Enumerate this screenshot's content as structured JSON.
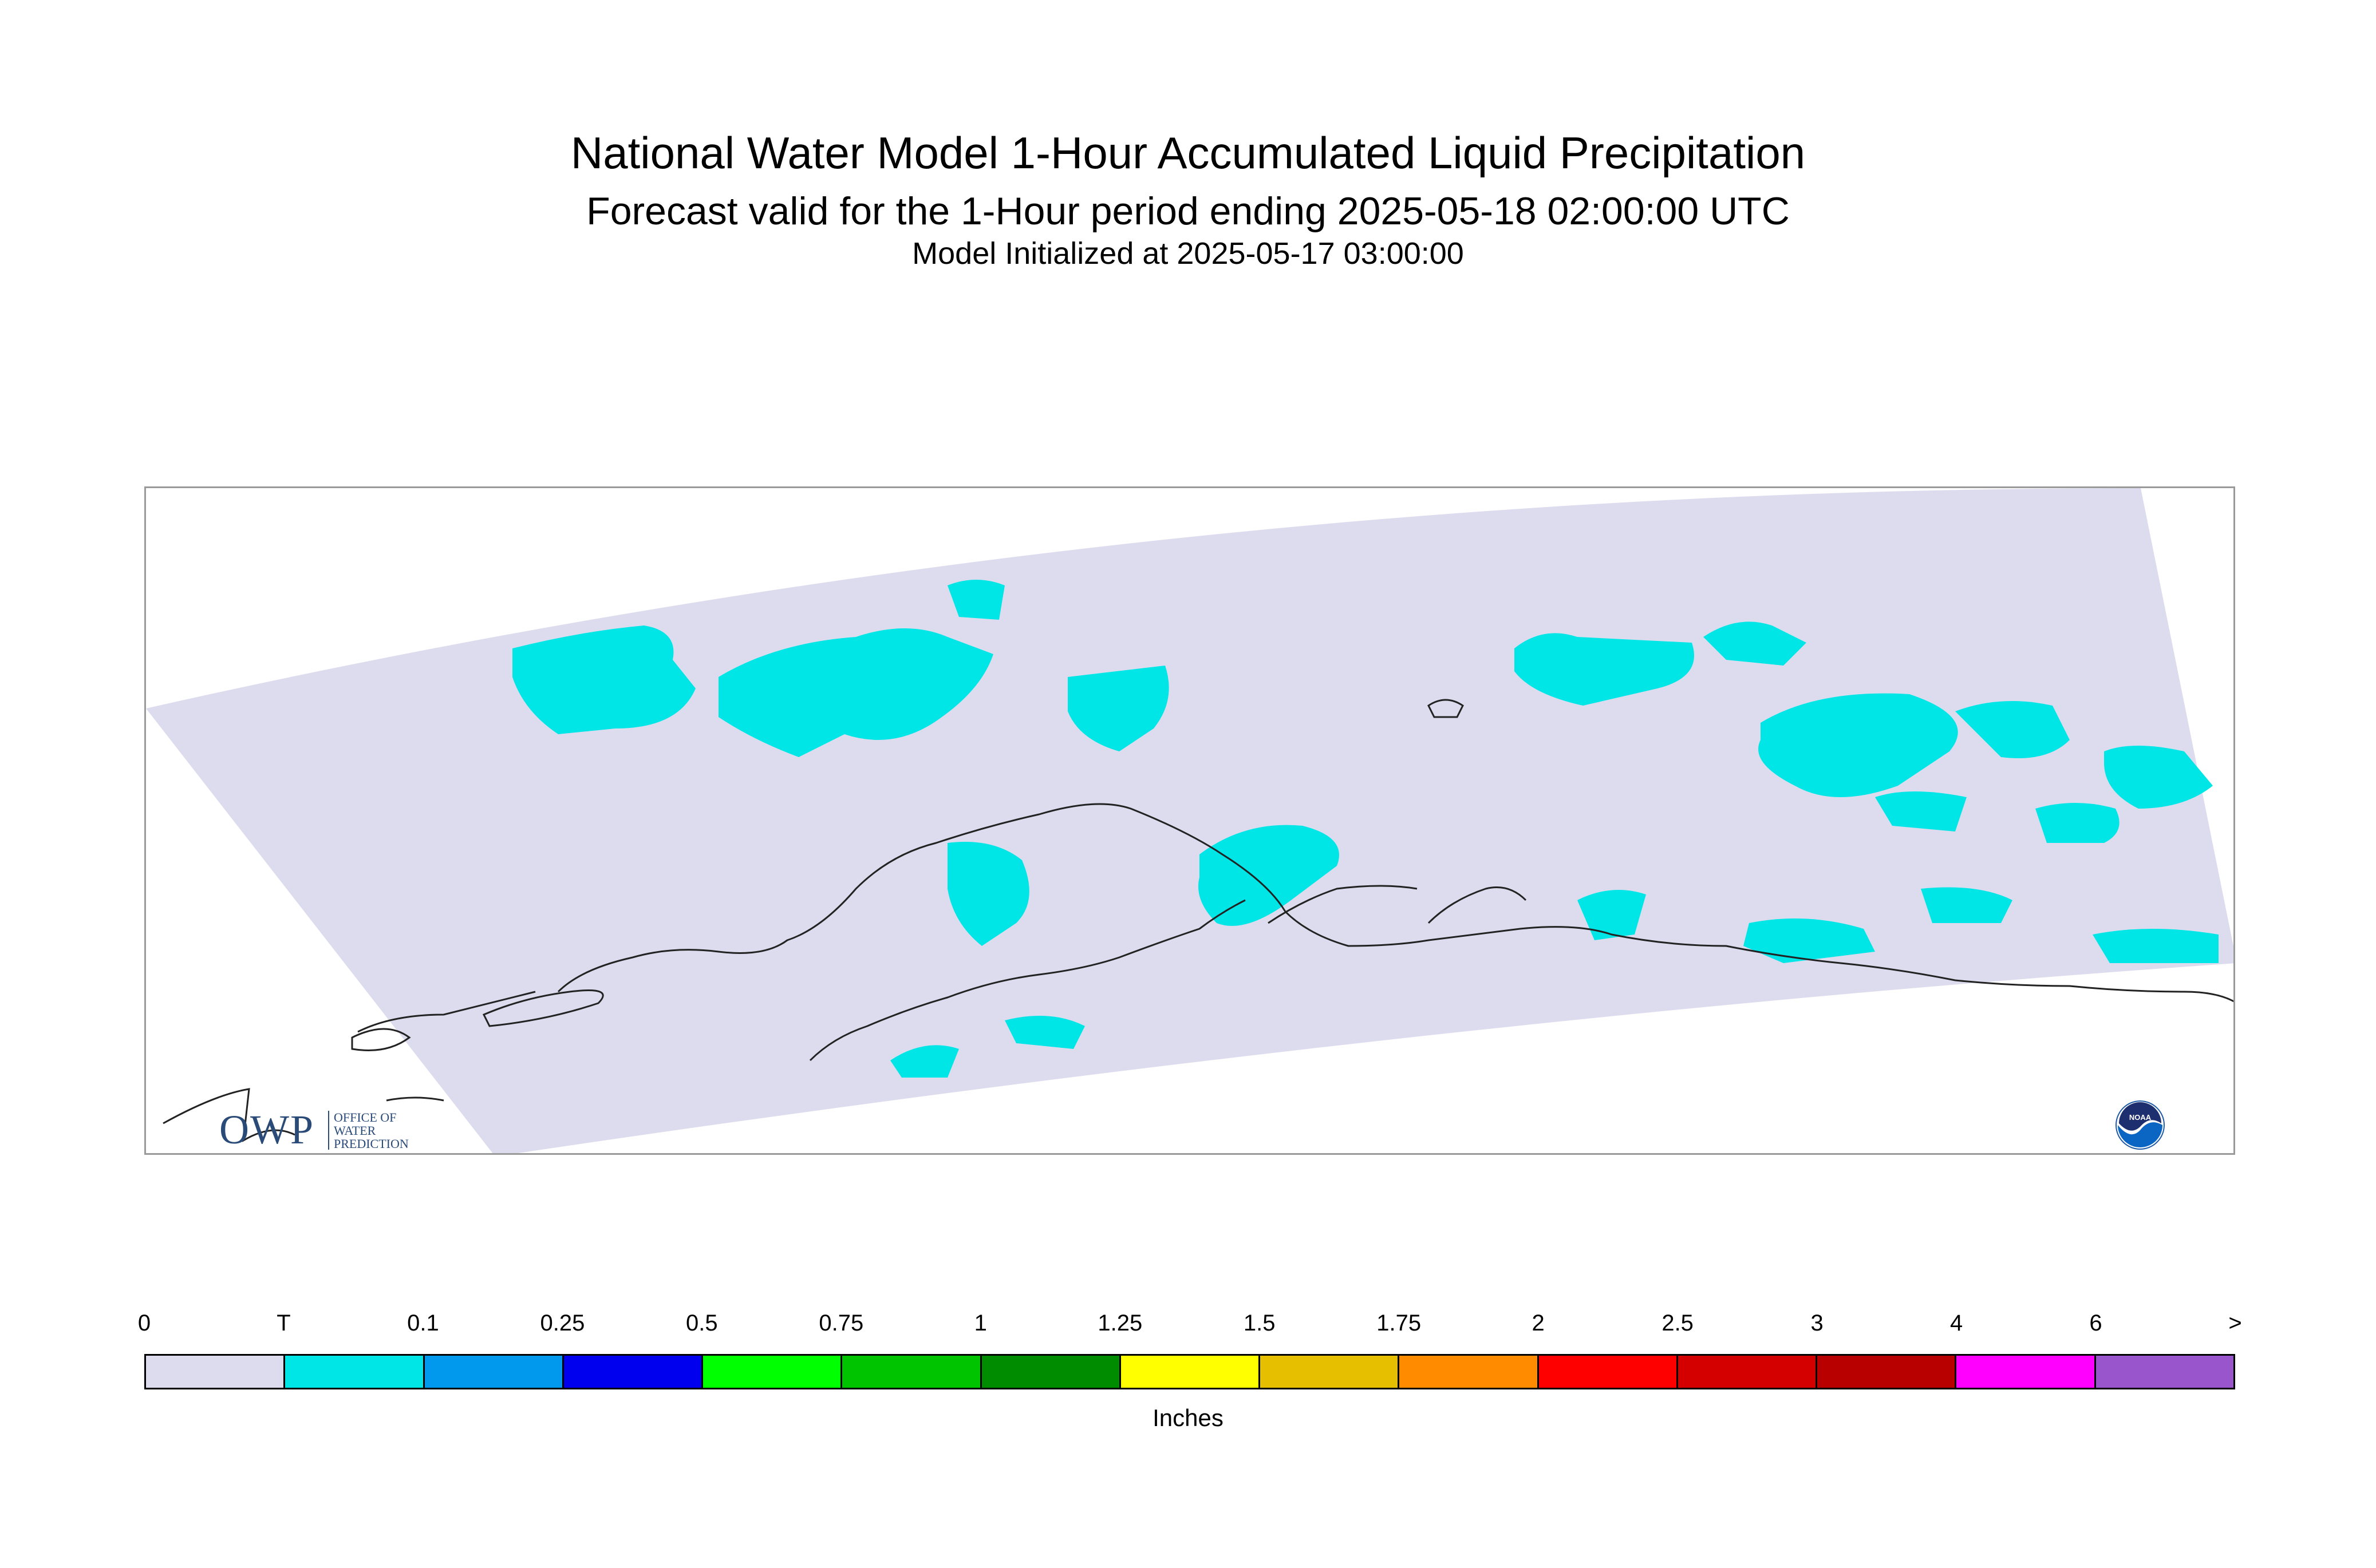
{
  "header": {
    "title": "National Water Model 1-Hour Accumulated Liquid Precipitation",
    "subtitle": "Forecast valid for the 1-Hour period ending 2025-05-18 02:00:00 UTC",
    "init_line": "Model Initialized at 2025-05-17 03:00:00"
  },
  "map": {
    "domain_color": "#dcdcee",
    "precip_color": "#00e6e6",
    "coast_color": "#222222",
    "owp_logo": {
      "mark": "OWP",
      "lines": [
        "OFFICE OF",
        "WATER",
        "PREDICTION"
      ]
    },
    "noaa_logo": {
      "text": "NOAA",
      "icon": "noaa-logo-icon"
    }
  },
  "legend": {
    "tick_labels": [
      "0",
      "T",
      "0.1",
      "0.25",
      "0.5",
      "0.75",
      "1",
      "1.25",
      "1.5",
      "1.75",
      "2",
      "2.5",
      "3",
      "4",
      "6",
      ">"
    ],
    "colors": [
      "#dcdcee",
      "#00e6e6",
      "#0099ee",
      "#0000ee",
      "#00ff00",
      "#00c400",
      "#008c00",
      "#ffff00",
      "#e6c000",
      "#ff8c00",
      "#ff0000",
      "#d40000",
      "#b80000",
      "#ff00ff",
      "#9955cc"
    ],
    "units": "Inches"
  }
}
